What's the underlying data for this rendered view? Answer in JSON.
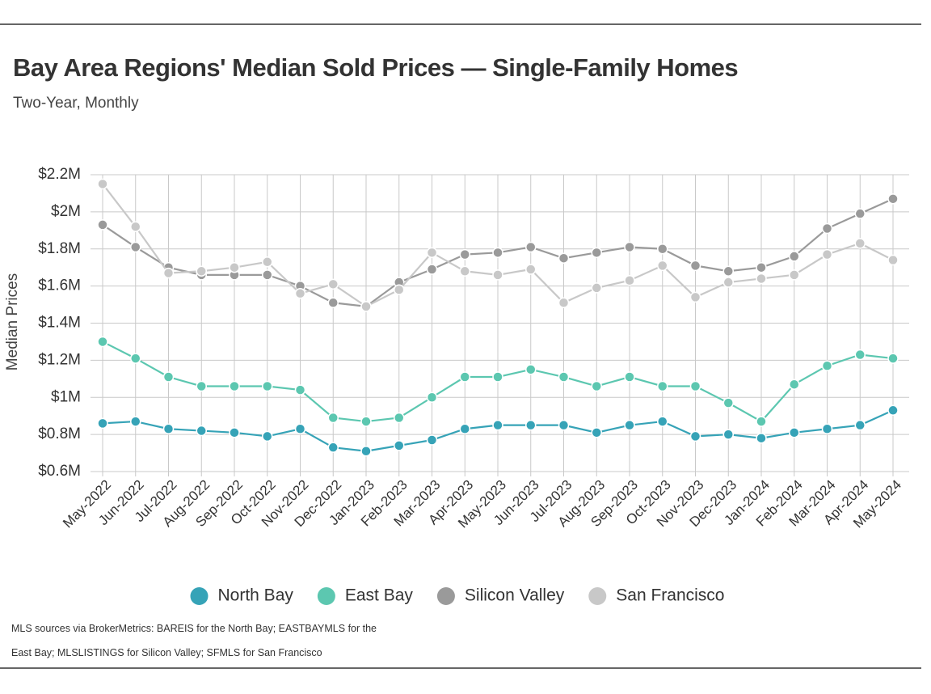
{
  "chart_data": {
    "type": "line",
    "title": "Bay Area Regions' Median Sold Prices — Single-Family Homes",
    "subtitle": "Two-Year, Monthly",
    "y_label": "Median Prices",
    "footnote": "MLS sources via BrokerMetrics: BAREIS for the North Bay; EASTBAYMLS for the East Bay; MLSLISTINGS for Silicon Valley; SFMLS for San Francisco",
    "categories": [
      "May-2022",
      "Jun-2022",
      "Jul-2022",
      "Aug-2022",
      "Sep-2022",
      "Oct-2022",
      "Nov-2022",
      "Dec-2022",
      "Jan-2023",
      "Feb-2023",
      "Mar-2023",
      "Apr-2023",
      "May-2023",
      "Jun-2023",
      "Jul-2023",
      "Aug-2023",
      "Sep-2023",
      "Oct-2023",
      "Nov-2023",
      "Dec-2023",
      "Jan-2024",
      "Feb-2024",
      "Mar-2024",
      "Apr-2024",
      "May-2024"
    ],
    "series": [
      {
        "name": "North Bay",
        "color": "#36a3b7",
        "values": [
          860000,
          870000,
          830000,
          820000,
          810000,
          790000,
          830000,
          730000,
          710000,
          740000,
          770000,
          830000,
          850000,
          850000,
          850000,
          810000,
          850000,
          870000,
          790000,
          800000,
          780000,
          810000,
          830000,
          850000,
          930000
        ]
      },
      {
        "name": "East Bay",
        "color": "#5cc7b0",
        "values": [
          1300000,
          1210000,
          1110000,
          1060000,
          1060000,
          1060000,
          1040000,
          890000,
          870000,
          890000,
          1000000,
          1110000,
          1110000,
          1150000,
          1110000,
          1060000,
          1110000,
          1060000,
          1060000,
          970000,
          870000,
          1070000,
          1170000,
          1230000,
          1210000
        ]
      },
      {
        "name": "Silicon Valley",
        "color": "#9a9a9a",
        "values": [
          1930000,
          1810000,
          1700000,
          1660000,
          1660000,
          1660000,
          1600000,
          1510000,
          1490000,
          1620000,
          1690000,
          1770000,
          1780000,
          1810000,
          1750000,
          1780000,
          1810000,
          1800000,
          1710000,
          1680000,
          1700000,
          1760000,
          1910000,
          1990000,
          2070000
        ]
      },
      {
        "name": "San Francisco",
        "color": "#c8c8c8",
        "values": [
          2150000,
          1920000,
          1670000,
          1680000,
          1700000,
          1730000,
          1560000,
          1610000,
          1490000,
          1580000,
          1780000,
          1680000,
          1660000,
          1690000,
          1510000,
          1590000,
          1630000,
          1710000,
          1540000,
          1620000,
          1640000,
          1660000,
          1770000,
          1830000,
          1740000
        ]
      }
    ],
    "ylim": [
      600000,
      2200000
    ],
    "yticks": [
      {
        "value": 600000,
        "label": "$0.6M"
      },
      {
        "value": 800000,
        "label": "$0.8M"
      },
      {
        "value": 1000000,
        "label": "$1M"
      },
      {
        "value": 1200000,
        "label": "$1.2M"
      },
      {
        "value": 1400000,
        "label": "$1.4M"
      },
      {
        "value": 1600000,
        "label": "$1.6M"
      },
      {
        "value": 1800000,
        "label": "$1.8M"
      },
      {
        "value": 2000000,
        "label": "$2M"
      },
      {
        "value": 2200000,
        "label": "$2.2M"
      }
    ],
    "grid": true
  }
}
